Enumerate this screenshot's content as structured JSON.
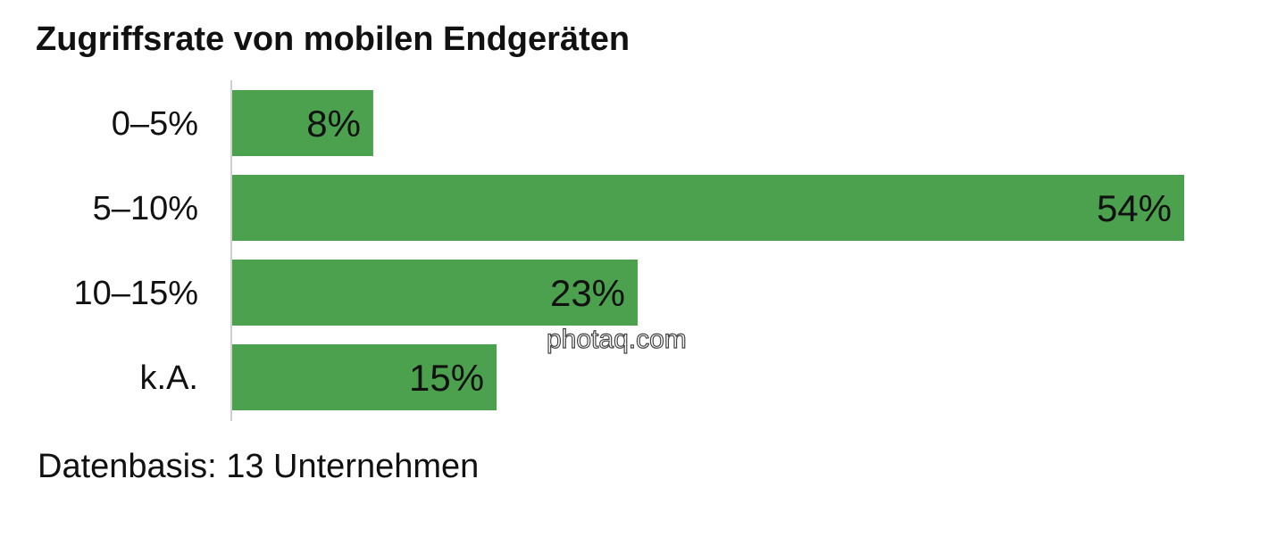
{
  "chart_data": {
    "type": "bar",
    "orientation": "horizontal",
    "title": "Zugriffsrate von mobilen Endgeräten",
    "categories": [
      "0–5%",
      "5–10%",
      "10–15%",
      "k.A."
    ],
    "values": [
      8,
      54,
      23,
      15
    ],
    "value_labels": [
      "8%",
      "54%",
      "23%",
      "15%"
    ],
    "xlim": [
      0,
      54
    ],
    "grid": false,
    "note": "Datenbasis: 13 Unternehmen",
    "bar_color": "#4ca14f"
  },
  "watermark": "photaq.com"
}
